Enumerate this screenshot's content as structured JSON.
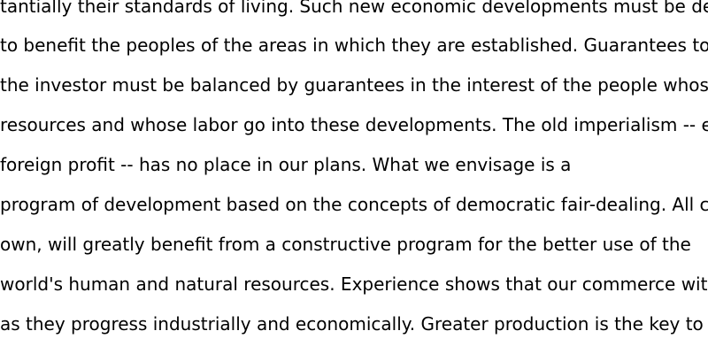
{
  "document": {
    "lines": [
      "tantially their standards of living. Such new economic developments must be de",
      "to benefit the peoples of the areas in which they are established. Guarantees to",
      "the investor must be balanced by guarantees in the interest of the people whos",
      "resources and whose labor go into these developments. The old imperialism -- e",
      "foreign profit -- has no place in our plans. What we envisage is a",
      "program of development based on the concepts of democratic fair-dealing. All c",
      "own, will greatly benefit from a constructive program for the better use of the",
      "world's human and natural resources. Experience shows that our commerce wit",
      "as they progress industrially and economically. Greater production is the key to"
    ]
  }
}
